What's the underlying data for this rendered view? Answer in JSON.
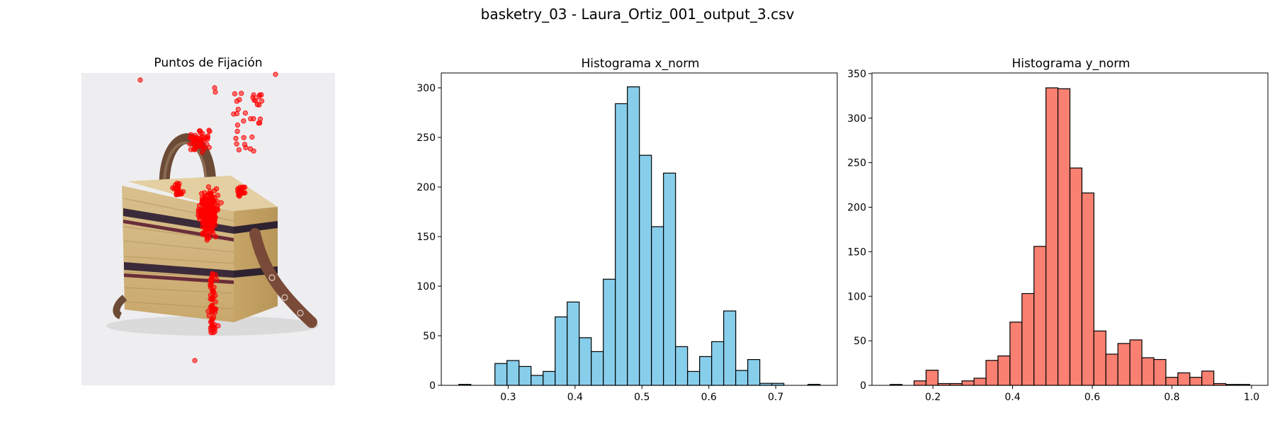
{
  "figure": {
    "suptitle": "basketry_03 - Laura_Ortiz_001_output_3.csv"
  },
  "image_panel": {
    "title": "Puntos de Fijación",
    "scatter_color": "#ff0000",
    "content": "product photo of a woven basket bag with fixation points overlaid"
  },
  "chart_data": [
    {
      "type": "bar",
      "title": "Histograma x_norm",
      "xlabel": "",
      "ylabel": "",
      "color": "#87ceeb",
      "edgecolor": "#000000",
      "bin_edges": [
        0.2262,
        0.2442,
        0.2622,
        0.2802,
        0.2982,
        0.3162,
        0.3342,
        0.3522,
        0.3702,
        0.3882,
        0.4062,
        0.4242,
        0.4422,
        0.4602,
        0.4782,
        0.4962,
        0.5142,
        0.5322,
        0.5502,
        0.5682,
        0.5862,
        0.6042,
        0.6222,
        0.6402,
        0.6582,
        0.6762,
        0.6942,
        0.7122,
        0.7302,
        0.7482,
        0.7662
      ],
      "counts": [
        1,
        0,
        0,
        22,
        25,
        19,
        10,
        14,
        69,
        84,
        48,
        34,
        107,
        284,
        301,
        232,
        160,
        214,
        39,
        14,
        29,
        44,
        75,
        15,
        26,
        2,
        2,
        0,
        0,
        1
      ],
      "xlim": [
        0.2,
        0.792
      ],
      "ylim": [
        0,
        315
      ],
      "xticks": [
        0.3,
        0.4,
        0.5,
        0.6,
        0.7
      ],
      "xtick_labels": [
        "0.3",
        "0.4",
        "0.5",
        "0.6",
        "0.7"
      ],
      "yticks": [
        0,
        50,
        100,
        150,
        200,
        250,
        300
      ],
      "ytick_labels": [
        "0",
        "50",
        "100",
        "150",
        "200",
        "250",
        "300"
      ]
    },
    {
      "type": "bar",
      "title": "Histograma y_norm",
      "xlabel": "",
      "ylabel": "",
      "color": "#fa8072",
      "edgecolor": "#000000",
      "bin_edges": [
        0.0925,
        0.1226,
        0.1527,
        0.1828,
        0.2129,
        0.243,
        0.2731,
        0.3032,
        0.3333,
        0.3634,
        0.3935,
        0.4236,
        0.4537,
        0.4838,
        0.5139,
        0.544,
        0.5741,
        0.6042,
        0.6343,
        0.6644,
        0.6945,
        0.7246,
        0.7547,
        0.7848,
        0.8149,
        0.845,
        0.8751,
        0.9052,
        0.9353,
        0.9654,
        0.9955
      ],
      "counts": [
        1,
        0,
        5,
        17,
        2,
        2,
        5,
        8,
        28,
        33,
        71,
        103,
        156,
        334,
        333,
        244,
        216,
        61,
        35,
        47,
        51,
        31,
        29,
        9,
        14,
        9,
        16,
        2,
        1,
        1
      ],
      "xlim": [
        0.047,
        1.041
      ],
      "ylim": [
        0,
        350.7
      ],
      "xticks": [
        0.2,
        0.4,
        0.6,
        0.8,
        1.0
      ],
      "xtick_labels": [
        "0.2",
        "0.4",
        "0.6",
        "0.8",
        "1.0"
      ],
      "yticks": [
        0,
        50,
        100,
        150,
        200,
        250,
        300,
        350
      ],
      "ytick_labels": [
        "0",
        "50",
        "100",
        "150",
        "200",
        "250",
        "300",
        "350"
      ]
    }
  ]
}
